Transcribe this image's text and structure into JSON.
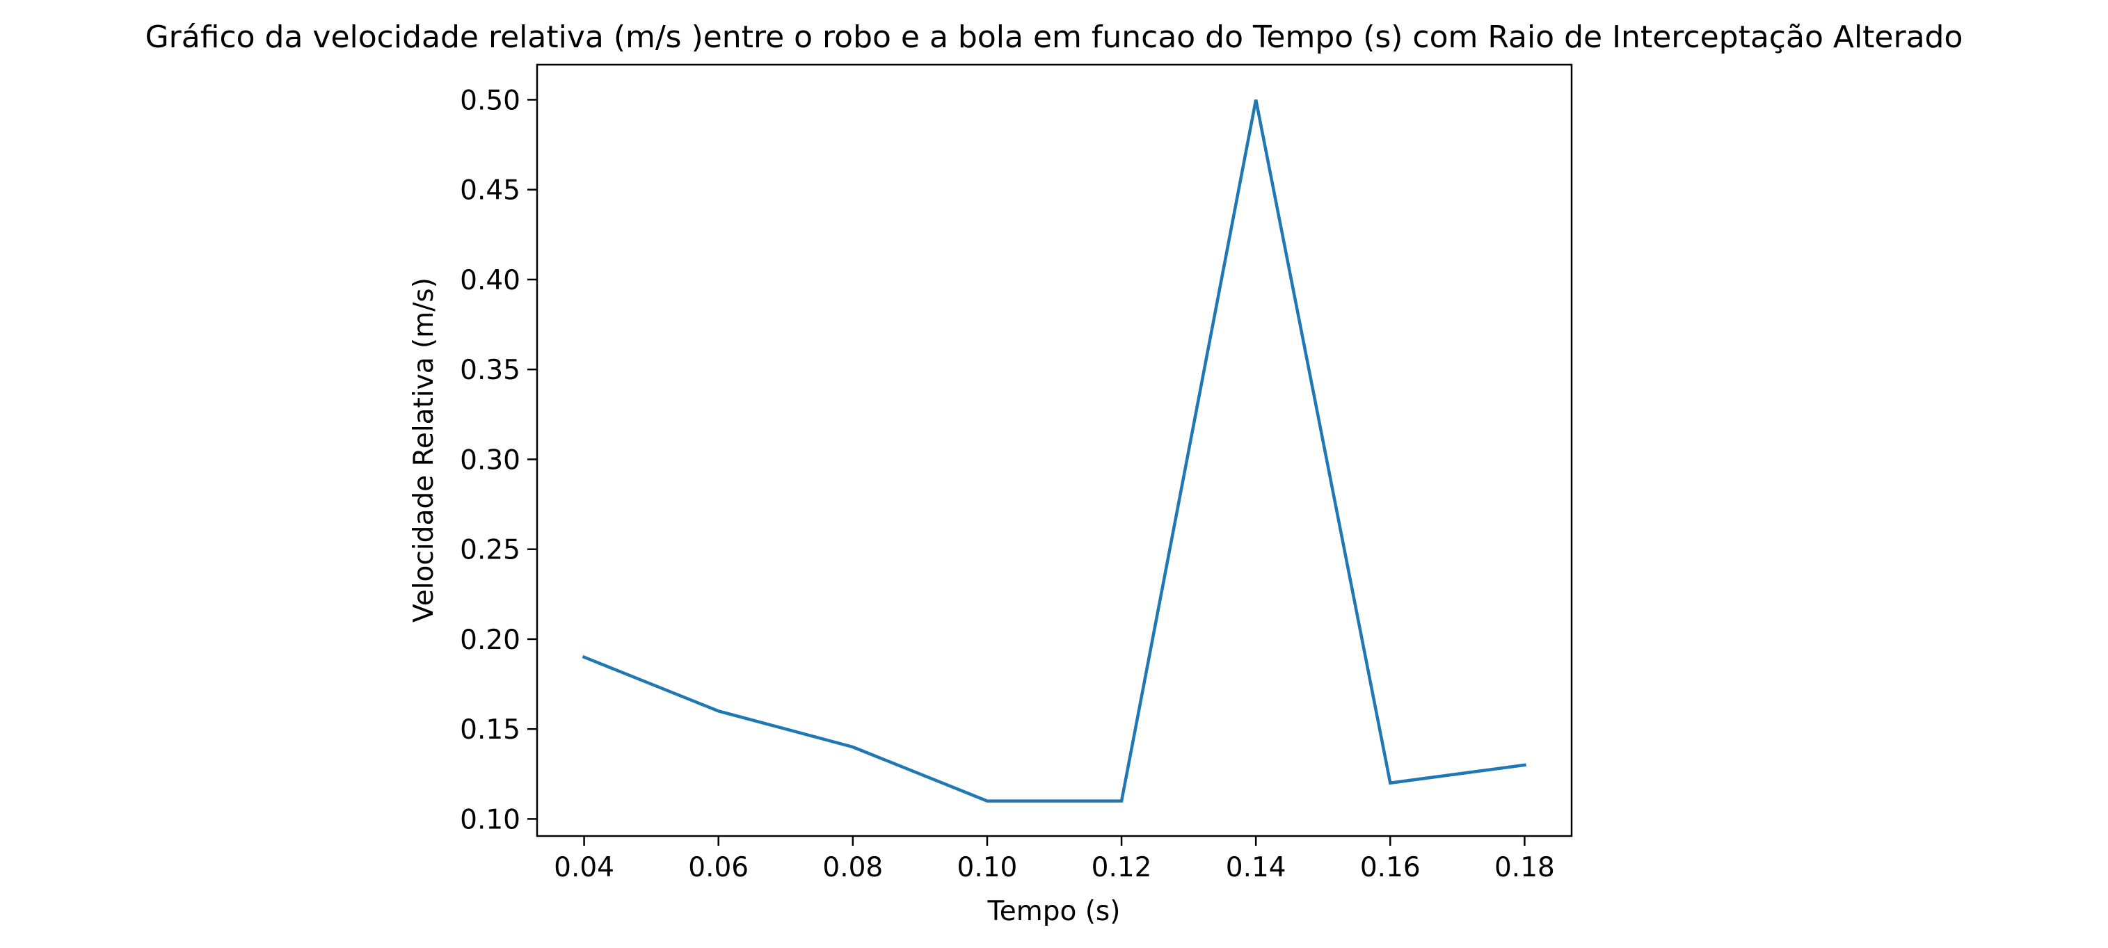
{
  "chart_data": {
    "type": "line",
    "title": "Gráfico da velocidade relativa (m/s )entre o robo e a bola em funcao do Tempo (s) com Raio de Interceptação Alterado",
    "xlabel": "Tempo (s)",
    "ylabel": "Velocidade Relativa (m/s)",
    "xlim": [
      0.033,
      0.187
    ],
    "ylim": [
      0.0905,
      0.5195
    ],
    "x_ticks": [
      0.04,
      0.06,
      0.08,
      0.1,
      0.12,
      0.14,
      0.16,
      0.18
    ],
    "x_tick_labels": [
      "0.04",
      "0.06",
      "0.08",
      "0.10",
      "0.12",
      "0.14",
      "0.16",
      "0.18"
    ],
    "y_ticks": [
      0.1,
      0.15,
      0.2,
      0.25,
      0.3,
      0.35,
      0.4,
      0.45,
      0.5
    ],
    "y_tick_labels": [
      "0.10",
      "0.15",
      "0.20",
      "0.25",
      "0.30",
      "0.35",
      "0.40",
      "0.45",
      "0.50"
    ],
    "grid": false,
    "series": [
      {
        "color": "#1f77b4",
        "x": [
          0.04,
          0.06,
          0.08,
          0.1,
          0.12,
          0.14,
          0.16,
          0.18
        ],
        "y": [
          0.19,
          0.16,
          0.14,
          0.11,
          0.11,
          0.5,
          0.12,
          0.13
        ]
      }
    ]
  }
}
